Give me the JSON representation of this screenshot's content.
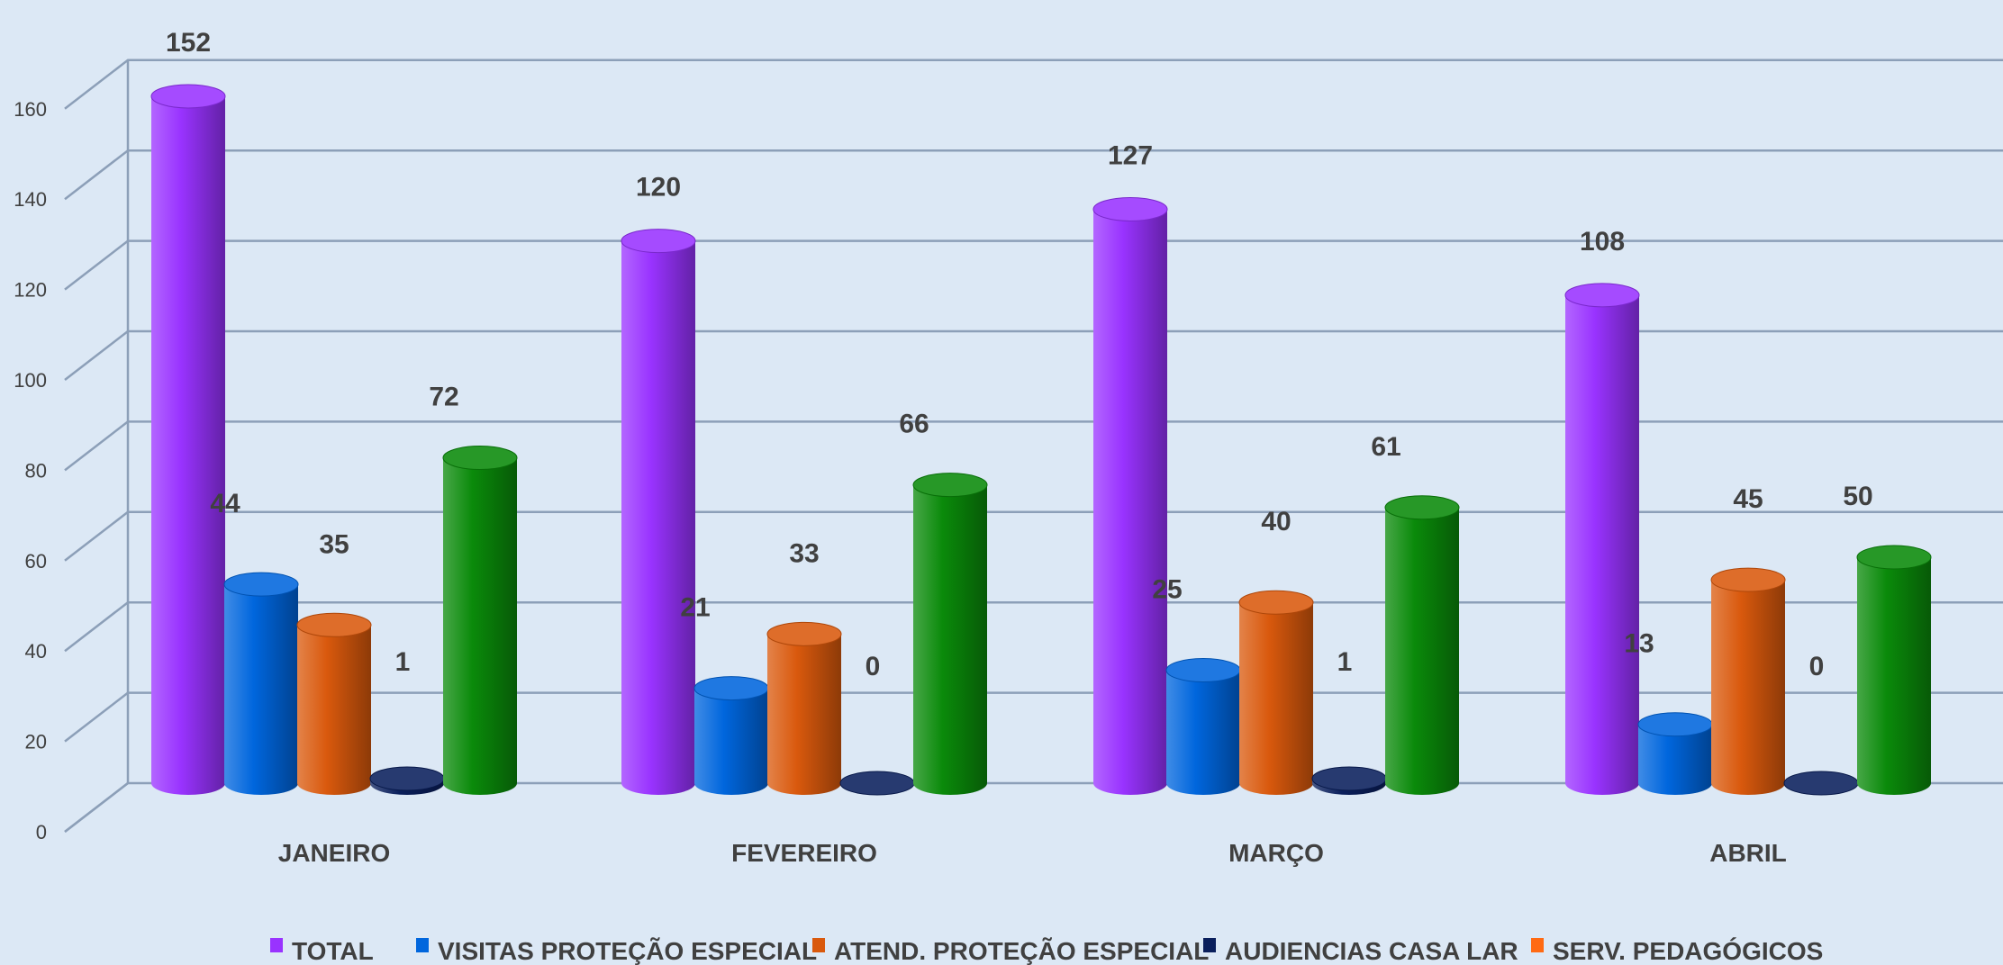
{
  "chart_data": {
    "type": "bar",
    "title": "",
    "xlabel": "",
    "ylabel": "",
    "ylim": [
      0,
      160
    ],
    "y_ticks": [
      "0",
      "20",
      "40",
      "60",
      "80",
      "100",
      "120",
      "140",
      "160"
    ],
    "y_tick_values": [
      0,
      20,
      40,
      60,
      80,
      100,
      120,
      140,
      160
    ],
    "grid": true,
    "legend_position": "bottom",
    "categories": [
      "JANEIRO",
      "FEVEREIRO",
      "MARÇO",
      "ABRIL"
    ],
    "series": [
      {
        "name": "TOTAL",
        "color": "#9933ff",
        "values": [
          152,
          120,
          127,
          108
        ]
      },
      {
        "name": "VISITAS PROTEÇÃO ESPECIAL",
        "color": "#0066dd",
        "values": [
          44,
          21,
          25,
          13
        ]
      },
      {
        "name": "ATEND. PROTEÇÃO ESPECIAL",
        "color": "#d9590d",
        "values": [
          35,
          33,
          40,
          45
        ]
      },
      {
        "name": "AUDIENCIAS CASA LAR",
        "color": "#0a1f5c",
        "values": [
          1,
          0,
          1,
          0
        ]
      },
      {
        "name": "SERV. PEDAGÓGICOS",
        "color": "#0a8a0a",
        "legend_color": "#ff6a13",
        "values": [
          72,
          66,
          61,
          50
        ]
      }
    ]
  }
}
